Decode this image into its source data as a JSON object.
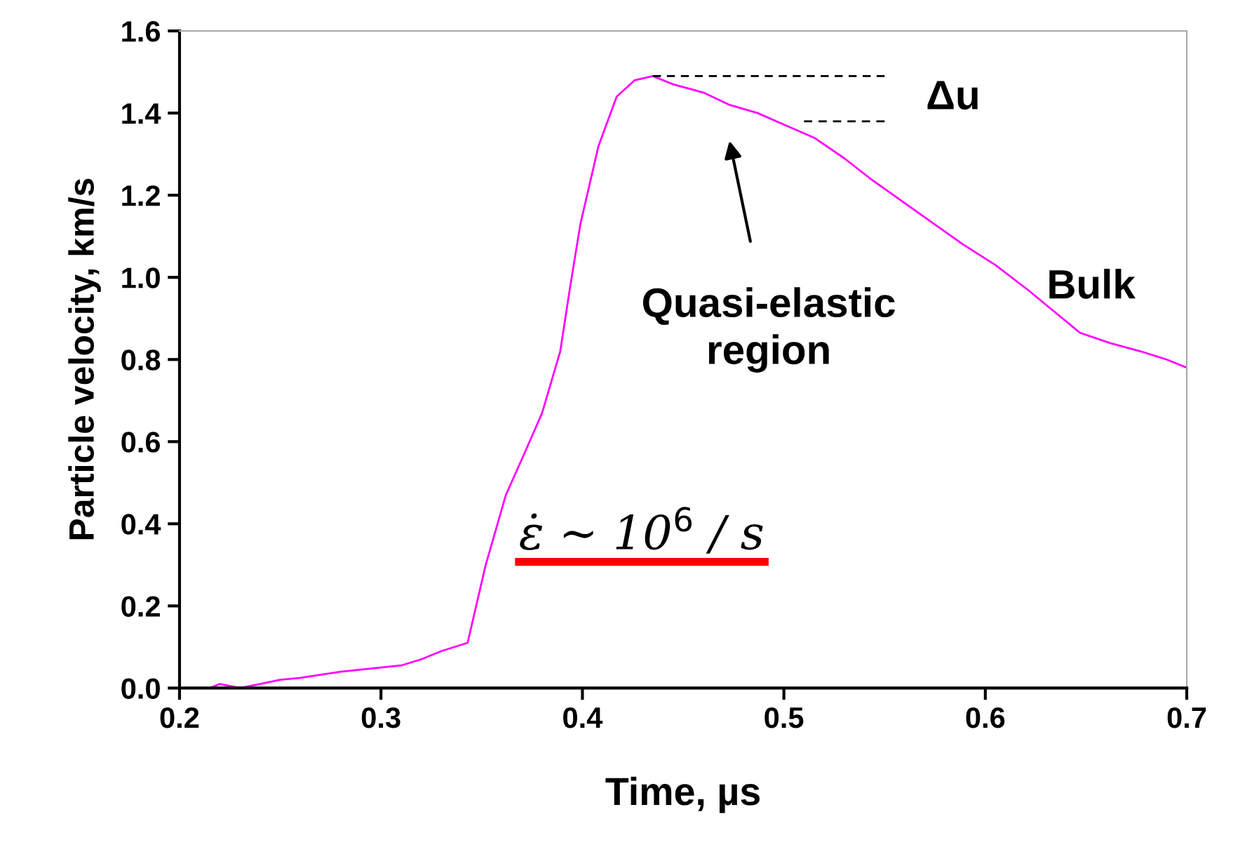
{
  "chart_data": {
    "type": "line",
    "xlabel": "Time, µs",
    "ylabel": "Particle velocity, km/s",
    "xlim": [
      0.2,
      0.7
    ],
    "ylim": [
      0.0,
      1.6
    ],
    "xticks": [
      0.2,
      0.3,
      0.4,
      0.5,
      0.6,
      0.7
    ],
    "yticks": [
      {
        "value": 0,
        "label": "0.0"
      },
      0.2,
      0.4,
      0.6,
      0.8,
      {
        "value": 1,
        "label": "1.0"
      },
      1.2,
      1.4,
      1.6
    ],
    "grid": false,
    "legend": false,
    "marker": "none",
    "series": [
      {
        "color": "#ff00ff",
        "line_style": "solid",
        "x": [
          0.215,
          0.22,
          0.23,
          0.24,
          0.25,
          0.26,
          0.28,
          0.29,
          0.3,
          0.31,
          0.32,
          0.33,
          0.343,
          0.352,
          0.362,
          0.372,
          0.38,
          0.389,
          0.394,
          0.399,
          0.408,
          0.417,
          0.426,
          0.435,
          0.445,
          0.46,
          0.473,
          0.487,
          0.501,
          0.515,
          0.53,
          0.543,
          0.566,
          0.589,
          0.605,
          0.621,
          0.647,
          0.662,
          0.677,
          0.69,
          0.7
        ],
        "values": [
          0.0,
          0.01,
          0.0,
          0.01,
          0.02,
          0.025,
          0.04,
          0.045,
          0.05,
          0.055,
          0.07,
          0.09,
          0.11,
          0.3,
          0.47,
          0.58,
          0.67,
          0.82,
          0.98,
          1.13,
          1.32,
          1.44,
          1.48,
          1.49,
          1.47,
          1.45,
          1.42,
          1.4,
          1.37,
          1.34,
          1.29,
          1.24,
          1.16,
          1.08,
          1.03,
          0.97,
          0.865,
          0.84,
          0.82,
          0.8,
          0.78
        ]
      },
      {
        "color": "#000000",
        "line_style": "dashed",
        "x": [
          0.435,
          0.55
        ],
        "values": [
          1.49,
          1.49
        ]
      },
      {
        "color": "#000000",
        "line_style": "dashed",
        "x": [
          0.51,
          0.55
        ],
        "values": [
          1.38,
          1.38
        ]
      }
    ],
    "annotations": [
      "Quasi-elastic\nregion",
      "Δu",
      "Bulk",
      "ε̇ ~ 10$^{6}$ / s"
    ]
  }
}
